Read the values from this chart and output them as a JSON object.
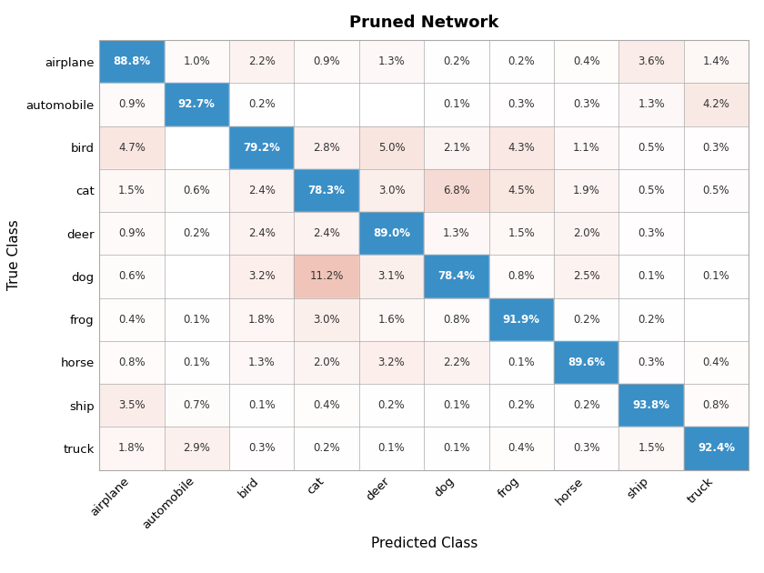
{
  "title": "Pruned Network",
  "xlabel": "Predicted Class",
  "ylabel": "True Class",
  "classes": [
    "airplane",
    "automobile",
    "bird",
    "cat",
    "deer",
    "dog",
    "frog",
    "horse",
    "ship",
    "truck"
  ],
  "matrix": [
    [
      88.8,
      1.0,
      2.2,
      0.9,
      1.3,
      0.2,
      0.2,
      0.4,
      3.6,
      1.4
    ],
    [
      0.9,
      92.7,
      0.2,
      0.0,
      0.0,
      0.1,
      0.3,
      0.3,
      1.3,
      4.2
    ],
    [
      4.7,
      0.0,
      79.2,
      2.8,
      5.0,
      2.1,
      4.3,
      1.1,
      0.5,
      0.3
    ],
    [
      1.5,
      0.6,
      2.4,
      78.3,
      3.0,
      6.8,
      4.5,
      1.9,
      0.5,
      0.5
    ],
    [
      0.9,
      0.2,
      2.4,
      2.4,
      89.0,
      1.3,
      1.5,
      2.0,
      0.3,
      0.0
    ],
    [
      0.6,
      0.0,
      3.2,
      11.2,
      3.1,
      78.4,
      0.8,
      2.5,
      0.1,
      0.1
    ],
    [
      0.4,
      0.1,
      1.8,
      3.0,
      1.6,
      0.8,
      91.9,
      0.2,
      0.2,
      0.0
    ],
    [
      0.8,
      0.1,
      1.3,
      2.0,
      3.2,
      2.2,
      0.1,
      89.6,
      0.3,
      0.4
    ],
    [
      3.5,
      0.7,
      0.1,
      0.4,
      0.2,
      0.1,
      0.2,
      0.2,
      93.8,
      0.8
    ],
    [
      1.8,
      2.9,
      0.3,
      0.2,
      0.1,
      0.1,
      0.4,
      0.3,
      1.5,
      92.4
    ]
  ],
  "diag_color": "#3A8FC7",
  "off_diag_high_color": "#F0C4B8",
  "off_diag_low_color": "#FFFFFF",
  "diag_text_color": "#FFFFFF",
  "off_diag_text_color": "#333333",
  "grid_color": "#AAAAAA",
  "title_fontsize": 13,
  "label_fontsize": 11,
  "cell_fontsize": 8.5,
  "tick_fontsize": 9.5
}
